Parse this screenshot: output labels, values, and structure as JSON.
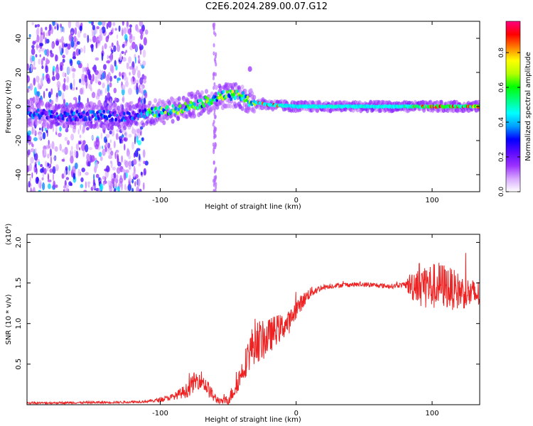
{
  "title": "C2E6.2024.289.00.07.G12",
  "chart_data": [
    {
      "type": "heatmap",
      "xlabel": "Height of straight line (km)",
      "ylabel": "Frequency (Hz)",
      "xlim": [
        -198,
        135
      ],
      "ylim": [
        -50,
        50
      ],
      "xticks": [
        -100,
        0,
        100
      ],
      "yticks": [
        -40,
        -20,
        0,
        20,
        40
      ],
      "colorbar": {
        "label": "Normalized spectral amplitude",
        "range": [
          0.0,
          0.98
        ],
        "ticks": [
          0.0,
          0.2,
          0.4,
          0.6,
          0.8
        ],
        "colors": [
          "#ffffff",
          "#d7a8ff",
          "#9b30ff",
          "#5a0aff",
          "#0000ff",
          "#00a0ff",
          "#00ffff",
          "#00ff80",
          "#00ff00",
          "#b4ff00",
          "#ffff00",
          "#ff8000",
          "#ff0000",
          "#ff007f"
        ]
      },
      "ridge": [
        {
          "x": -190,
          "y": -4
        },
        {
          "x": -170,
          "y": -6
        },
        {
          "x": -150,
          "y": -5
        },
        {
          "x": -130,
          "y": -6
        },
        {
          "x": -110,
          "y": -4
        },
        {
          "x": -90,
          "y": -2
        },
        {
          "x": -70,
          "y": 2
        },
        {
          "x": -60,
          "y": 5
        },
        {
          "x": -50,
          "y": 7
        },
        {
          "x": -40,
          "y": 6
        },
        {
          "x": -35,
          "y": 3
        },
        {
          "x": -28,
          "y": 2
        },
        {
          "x": -20,
          "y": 1
        },
        {
          "x": 0,
          "y": 0
        },
        {
          "x": 40,
          "y": 0
        },
        {
          "x": 80,
          "y": 0
        },
        {
          "x": 110,
          "y": 0
        },
        {
          "x": 135,
          "y": 0
        }
      ]
    },
    {
      "type": "line",
      "xlabel": "Height of straight line (km)",
      "ylabel": "SNR (10 * v/v)",
      "scale_note": "(x10⁴)",
      "xlim": [
        -198,
        135
      ],
      "ylim": [
        0.0,
        2.1
      ],
      "xticks": [
        -100,
        0,
        100
      ],
      "yticks": [
        0.5,
        1.0,
        1.5,
        2.0
      ],
      "ytick_labels": [
        "0.5",
        "1.0",
        "1.5",
        "2.0"
      ],
      "color": "#ee2222",
      "envelope": {
        "x": [
          -198,
          -130,
          -110,
          -100,
          -90,
          -80,
          -75,
          -70,
          -65,
          -60,
          -55,
          -50,
          -45,
          -40,
          -35,
          -30,
          -25,
          -20,
          -15,
          -10,
          -5,
          0,
          10,
          20,
          30,
          40,
          50,
          60,
          70,
          80,
          85,
          90,
          95,
          100,
          105,
          110,
          115,
          120,
          125,
          130,
          135
        ],
        "y": [
          0.02,
          0.03,
          0.04,
          0.06,
          0.1,
          0.18,
          0.28,
          0.32,
          0.2,
          0.08,
          0.04,
          0.06,
          0.2,
          0.4,
          0.62,
          0.8,
          0.78,
          0.84,
          0.92,
          0.96,
          1.02,
          1.18,
          1.38,
          1.45,
          1.47,
          1.48,
          1.48,
          1.47,
          1.46,
          1.48,
          1.47,
          1.52,
          1.48,
          1.45,
          1.48,
          1.46,
          1.42,
          1.4,
          1.38,
          1.36,
          1.36
        ]
      },
      "noise": {
        "x": [
          -198,
          -110,
          -90,
          -75,
          -65,
          -55,
          -40,
          -30,
          -20,
          -10,
          0,
          10,
          20,
          80,
          85,
          95,
          110,
          125,
          135
        ],
        "y": [
          0.012,
          0.015,
          0.04,
          0.12,
          0.1,
          0.03,
          0.15,
          0.28,
          0.22,
          0.16,
          0.12,
          0.07,
          0.03,
          0.03,
          0.2,
          0.3,
          0.28,
          0.2,
          0.18
        ]
      }
    }
  ]
}
